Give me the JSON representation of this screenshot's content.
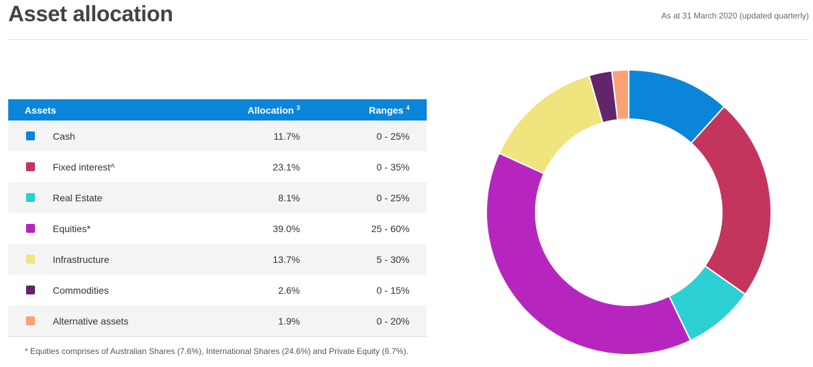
{
  "header": {
    "title": "Asset allocation",
    "as_at": "As at 31 March 2020 (updated quarterly)"
  },
  "table": {
    "headers": {
      "assets": "Assets",
      "allocation": "Allocation",
      "allocation_note": "3",
      "ranges": "Ranges",
      "ranges_note": "4"
    },
    "rows": [
      {
        "asset": "Cash",
        "allocation": "11.7%",
        "range": "0 - 25%",
        "color": "#0a85d9"
      },
      {
        "asset": "Fixed interest^",
        "allocation": "23.1%",
        "range": "0 - 35%",
        "color": "#c4355e"
      },
      {
        "asset": "Real Estate",
        "allocation": "8.1%",
        "range": "0 - 25%",
        "color": "#2ccfd4"
      },
      {
        "asset": "Equities*",
        "allocation": "39.0%",
        "range": "25 - 60%",
        "color": "#b626bf"
      },
      {
        "asset": "Infrastructure",
        "allocation": "13.7%",
        "range": "5 - 30%",
        "color": "#efe47e"
      },
      {
        "asset": "Commodities",
        "allocation": "2.6%",
        "range": "0 - 15%",
        "color": "#63246a"
      },
      {
        "asset": "Alternative assets",
        "allocation": "1.9%",
        "range": "0 - 20%",
        "color": "#f9a278"
      }
    ]
  },
  "footnote": "* Equities comprises of Australian Shares (7.6%), International Shares (24.6%) and Private Equity (6.7%).",
  "chart_data": {
    "type": "pie",
    "style": "donut",
    "categories": [
      "Cash",
      "Fixed interest^",
      "Real Estate",
      "Equities*",
      "Infrastructure",
      "Commodities",
      "Alternative assets"
    ],
    "values": [
      11.7,
      23.1,
      8.1,
      39.0,
      13.7,
      2.6,
      1.9
    ],
    "colors": [
      "#0a85d9",
      "#c4355e",
      "#2ccfd4",
      "#b626bf",
      "#efe47e",
      "#63246a",
      "#f9a278"
    ],
    "start": "top",
    "direction": "clockwise"
  }
}
